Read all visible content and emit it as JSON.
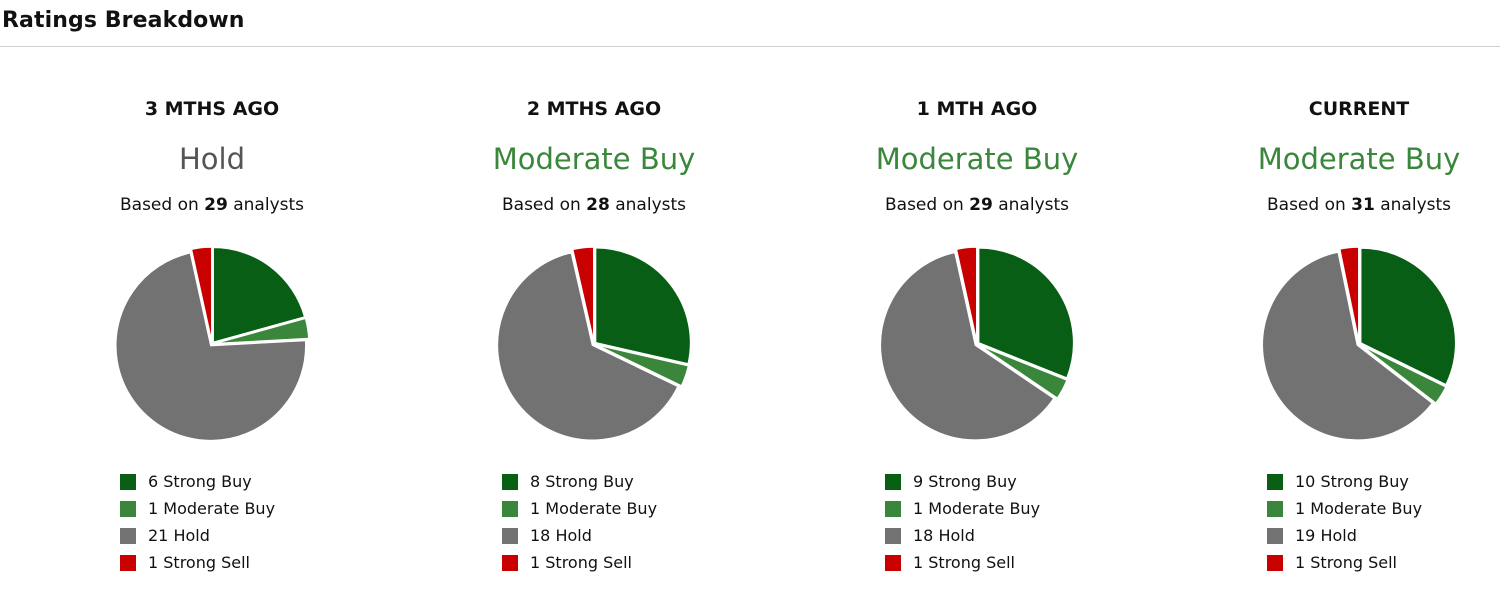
{
  "page": {
    "title": "Ratings Breakdown"
  },
  "labels": {
    "based_prefix": "Based on",
    "based_suffix": "analysts"
  },
  "colors": {
    "strong_buy": "#075e14",
    "moderate_buy": "#3a873c",
    "hold": "#727272",
    "strong_sell": "#c90000",
    "consensus_hold": "#555555",
    "consensus_moderate_buy": "#3a873c"
  },
  "chart_data": [
    {
      "type": "pie",
      "title": "3 MTHS AGO",
      "consensus": "Hold",
      "consensus_key": "consensus_hold",
      "analysts": "29",
      "slices": [
        {
          "key": "strong_buy",
          "value": 6,
          "label": "6 Strong Buy"
        },
        {
          "key": "moderate_buy",
          "value": 1,
          "label": "1 Moderate Buy"
        },
        {
          "key": "hold",
          "value": 21,
          "label": "21 Hold"
        },
        {
          "key": "strong_sell",
          "value": 1,
          "label": "1 Strong Sell"
        }
      ]
    },
    {
      "type": "pie",
      "title": "2 MTHS AGO",
      "consensus": "Moderate Buy",
      "consensus_key": "consensus_moderate_buy",
      "analysts": "28",
      "slices": [
        {
          "key": "strong_buy",
          "value": 8,
          "label": "8 Strong Buy"
        },
        {
          "key": "moderate_buy",
          "value": 1,
          "label": "1 Moderate Buy"
        },
        {
          "key": "hold",
          "value": 18,
          "label": "18 Hold"
        },
        {
          "key": "strong_sell",
          "value": 1,
          "label": "1 Strong Sell"
        }
      ]
    },
    {
      "type": "pie",
      "title": "1 MTH AGO",
      "consensus": "Moderate Buy",
      "consensus_key": "consensus_moderate_buy",
      "analysts": "29",
      "slices": [
        {
          "key": "strong_buy",
          "value": 9,
          "label": "9 Strong Buy"
        },
        {
          "key": "moderate_buy",
          "value": 1,
          "label": "1 Moderate Buy"
        },
        {
          "key": "hold",
          "value": 18,
          "label": "18 Hold"
        },
        {
          "key": "strong_sell",
          "value": 1,
          "label": "1 Strong Sell"
        }
      ]
    },
    {
      "type": "pie",
      "title": "CURRENT",
      "consensus": "Moderate Buy",
      "consensus_key": "consensus_moderate_buy",
      "analysts": "31",
      "slices": [
        {
          "key": "strong_buy",
          "value": 10,
          "label": "10 Strong Buy"
        },
        {
          "key": "moderate_buy",
          "value": 1,
          "label": "1 Moderate Buy"
        },
        {
          "key": "hold",
          "value": 19,
          "label": "19 Hold"
        },
        {
          "key": "strong_sell",
          "value": 1,
          "label": "1 Strong Sell"
        }
      ]
    }
  ]
}
